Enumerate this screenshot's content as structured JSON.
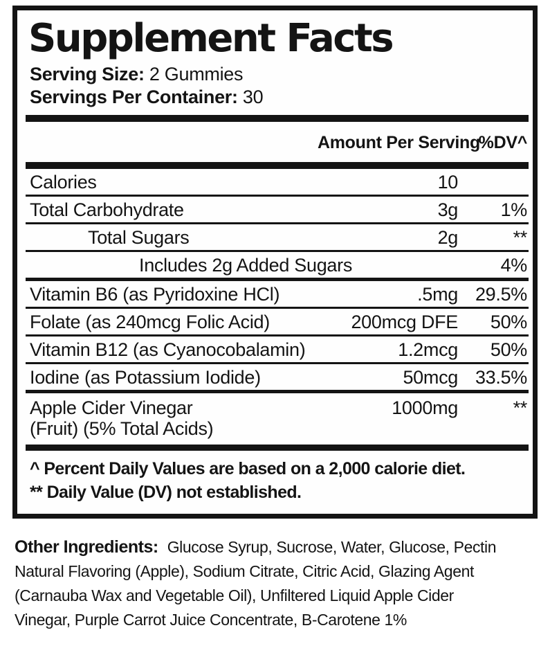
{
  "panel": {
    "title": "Supplement Facts",
    "serving_size": {
      "label": "Serving Size:",
      "value": "2 Gummies"
    },
    "servings_per_container": {
      "label": "Servings Per Container:",
      "value": "30"
    },
    "columns": {
      "amount": "Amount Per Serving",
      "dv": "%DV^"
    },
    "rows": [
      {
        "name": "Calories",
        "amount": "10",
        "dv": ""
      },
      {
        "name": "Total Carbohydrate",
        "amount": "3g",
        "dv": "1%"
      },
      {
        "name": "Total Sugars",
        "amount": "2g",
        "dv": "**"
      },
      {
        "name": "Includes 2g Added Sugars",
        "amount": "",
        "dv": "4%"
      },
      {
        "name": "Vitamin B6 (as Pyridoxine HCl)",
        "amount": ".5mg",
        "dv": "29.5%"
      },
      {
        "name": "Folate (as 240mcg Folic Acid)",
        "amount": "200mcg DFE",
        "dv": "50%"
      },
      {
        "name": "Vitamin B12 (as Cyanocobalamin)",
        "amount": "1.2mcg",
        "dv": "50%"
      },
      {
        "name": "Iodine (as Potassium Iodide)",
        "amount": "50mcg",
        "dv": "33.5%"
      },
      {
        "name_line1": "Apple Cider Vinegar",
        "name_line2": "(Fruit) (5% Total Acids)",
        "amount": "1000mg",
        "dv": "**"
      }
    ],
    "footnotes": [
      "^ Percent Daily Values are based on a 2,000 calorie diet.",
      "** Daily Value (DV) not established."
    ]
  },
  "other_ingredients": {
    "label": "Other Ingredients:",
    "lines": [
      "Glucose Syrup, Sucrose, Water, Glucose, Pectin",
      "Natural Flavoring (Apple), Sodium Citrate, Citric Acid, Glazing Agent",
      "(Carnauba Wax and Vegetable Oil), Unfiltered Liquid Apple Cider",
      "Vinegar, Purple Carrot Juice Concentrate, B-Carotene 1%"
    ]
  },
  "colors": {
    "ink": "#141414",
    "background": "#ffffff"
  }
}
